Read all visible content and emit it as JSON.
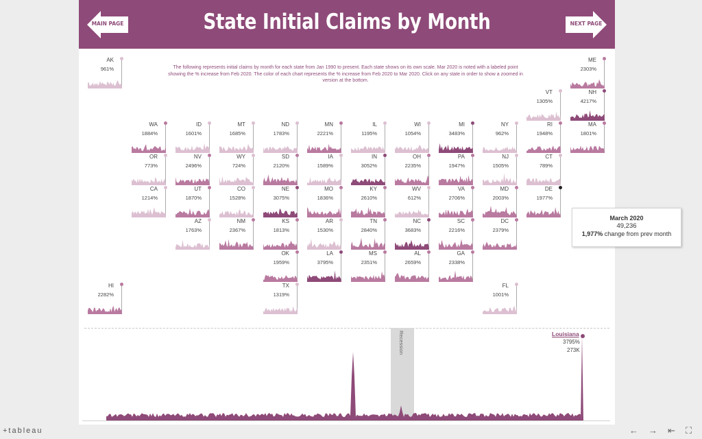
{
  "header": {
    "title": "State Initial Claims by Month",
    "main_page_label": "MAIN PAGE",
    "next_page_label": "NEXT PAGE"
  },
  "description": "The following represents initial claims by month for each state from Jan 1990  to present.  Each state shows on its own scale.  Mar 2020 is noted with a labeled point showing the % increase from Feb 2020.  The color of each chart represents the % increase from Feb 2020 to Mar 2020.  Click on any state in order to show a zoomed in version at the bottom.",
  "colors": {
    "brand": "#8e4a78",
    "low": "#dcc0d1",
    "mid": "#b97aa0",
    "high": "#8e4a78"
  },
  "states": [
    {
      "abbr": "AK",
      "pct": "961%",
      "col": 0,
      "row": 0
    },
    {
      "abbr": "ME",
      "pct": "2303%",
      "col": 11,
      "row": 0
    },
    {
      "abbr": "VT",
      "pct": "1305%",
      "col": 10,
      "row": 1
    },
    {
      "abbr": "NH",
      "pct": "4217%",
      "col": 11,
      "row": 1
    },
    {
      "abbr": "WA",
      "pct": "1884%",
      "col": 1,
      "row": 2
    },
    {
      "abbr": "ID",
      "pct": "1601%",
      "col": 2,
      "row": 2
    },
    {
      "abbr": "MT",
      "pct": "1685%",
      "col": 3,
      "row": 2
    },
    {
      "abbr": "ND",
      "pct": "1783%",
      "col": 4,
      "row": 2
    },
    {
      "abbr": "MN",
      "pct": "2221%",
      "col": 5,
      "row": 2
    },
    {
      "abbr": "IL",
      "pct": "1195%",
      "col": 6,
      "row": 2
    },
    {
      "abbr": "WI",
      "pct": "1054%",
      "col": 7,
      "row": 2
    },
    {
      "abbr": "MI",
      "pct": "3483%",
      "col": 8,
      "row": 2
    },
    {
      "abbr": "NY",
      "pct": "962%",
      "col": 9,
      "row": 2
    },
    {
      "abbr": "RI",
      "pct": "1948%",
      "col": 10,
      "row": 2
    },
    {
      "abbr": "MA",
      "pct": "1801%",
      "col": 11,
      "row": 2
    },
    {
      "abbr": "OR",
      "pct": "773%",
      "col": 1,
      "row": 3
    },
    {
      "abbr": "NV",
      "pct": "2496%",
      "col": 2,
      "row": 3
    },
    {
      "abbr": "WY",
      "pct": "724%",
      "col": 3,
      "row": 3
    },
    {
      "abbr": "SD",
      "pct": "2120%",
      "col": 4,
      "row": 3
    },
    {
      "abbr": "IA",
      "pct": "1589%",
      "col": 5,
      "row": 3
    },
    {
      "abbr": "IN",
      "pct": "3052%",
      "col": 6,
      "row": 3
    },
    {
      "abbr": "OH",
      "pct": "2235%",
      "col": 7,
      "row": 3
    },
    {
      "abbr": "PA",
      "pct": "1947%",
      "col": 8,
      "row": 3
    },
    {
      "abbr": "NJ",
      "pct": "1505%",
      "col": 9,
      "row": 3
    },
    {
      "abbr": "CT",
      "pct": "789%",
      "col": 10,
      "row": 3
    },
    {
      "abbr": "CA",
      "pct": "1214%",
      "col": 1,
      "row": 4
    },
    {
      "abbr": "UT",
      "pct": "1870%",
      "col": 2,
      "row": 4
    },
    {
      "abbr": "CO",
      "pct": "1528%",
      "col": 3,
      "row": 4
    },
    {
      "abbr": "NE",
      "pct": "3075%",
      "col": 4,
      "row": 4
    },
    {
      "abbr": "MO",
      "pct": "1836%",
      "col": 5,
      "row": 4
    },
    {
      "abbr": "KY",
      "pct": "2610%",
      "col": 6,
      "row": 4
    },
    {
      "abbr": "WV",
      "pct": "612%",
      "col": 7,
      "row": 4
    },
    {
      "abbr": "VA",
      "pct": "2706%",
      "col": 8,
      "row": 4
    },
    {
      "abbr": "MD",
      "pct": "2003%",
      "col": 9,
      "row": 4
    },
    {
      "abbr": "DE",
      "pct": "1977%",
      "col": 10,
      "row": 4
    },
    {
      "abbr": "AZ",
      "pct": "1763%",
      "col": 2,
      "row": 5
    },
    {
      "abbr": "NM",
      "pct": "2367%",
      "col": 3,
      "row": 5
    },
    {
      "abbr": "KS",
      "pct": "1813%",
      "col": 4,
      "row": 5
    },
    {
      "abbr": "AR",
      "pct": "1530%",
      "col": 5,
      "row": 5
    },
    {
      "abbr": "TN",
      "pct": "2840%",
      "col": 6,
      "row": 5
    },
    {
      "abbr": "NC",
      "pct": "3683%",
      "col": 7,
      "row": 5
    },
    {
      "abbr": "SC",
      "pct": "2216%",
      "col": 8,
      "row": 5
    },
    {
      "abbr": "DC",
      "pct": "2379%",
      "col": 9,
      "row": 5
    },
    {
      "abbr": "OK",
      "pct": "1959%",
      "col": 4,
      "row": 6
    },
    {
      "abbr": "LA",
      "pct": "3795%",
      "col": 5,
      "row": 6
    },
    {
      "abbr": "MS",
      "pct": "2351%",
      "col": 6,
      "row": 6
    },
    {
      "abbr": "AL",
      "pct": "2659%",
      "col": 7,
      "row": 6
    },
    {
      "abbr": "GA",
      "pct": "2338%",
      "col": 8,
      "row": 6
    },
    {
      "abbr": "HI",
      "pct": "2282%",
      "col": 0,
      "row": 7
    },
    {
      "abbr": "TX",
      "pct": "1319%",
      "col": 4,
      "row": 7
    },
    {
      "abbr": "FL",
      "pct": "1001%",
      "col": 9,
      "row": 7
    }
  ],
  "tooltip": {
    "month": "March 2020",
    "value": "49,236",
    "pct_bold": "1,977%",
    "pct_rest": " change from prev month"
  },
  "zoom": {
    "state": "Louisiana",
    "pct": "3795%",
    "value": "273K",
    "recession_label": "Recession"
  },
  "footer": {
    "logo": "+tableau"
  }
}
